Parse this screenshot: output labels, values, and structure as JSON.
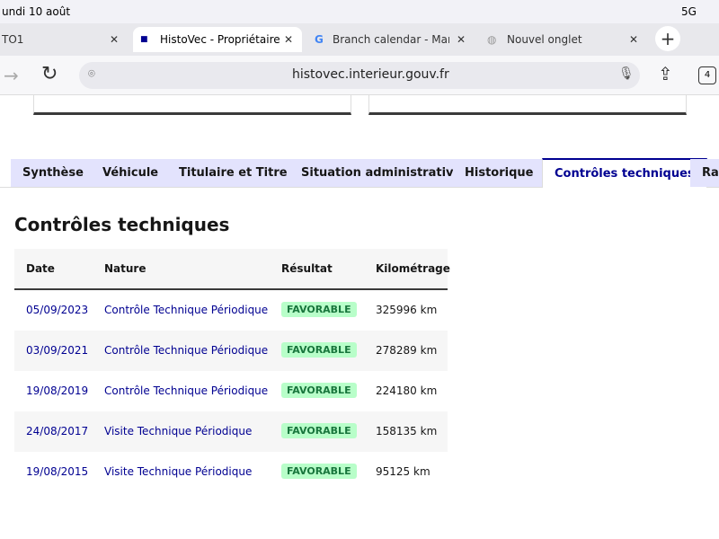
{
  "status_bar": {
    "date": "undi 10 août",
    "network": "5G"
  },
  "browser": {
    "tabs": [
      "TO1",
      "HistoVec - Propriétaire",
      "Branch calendar - Marse",
      "Nouvel onglet"
    ],
    "url": "histovec.interieur.gouv.fr",
    "tab_count": "4"
  },
  "page": {
    "tabs": [
      "Synthèse",
      "Véhicule",
      "Titulaire et Titre",
      "Situation administrative",
      "Historique",
      "Contrôles techniques",
      "Rap"
    ],
    "heading": "Contrôles techniques",
    "table": {
      "header": [
        "Date",
        "Nature",
        "Résultat",
        "Kilométrage"
      ],
      "rows": [
        [
          "05/09/2023",
          "Contrôle Technique Périodique",
          "FAVORABLE",
          "325996 km"
        ],
        [
          "03/09/2021",
          "Contrôle Technique Périodique",
          "FAVORABLE",
          "278289 km"
        ],
        [
          "19/08/2019",
          "Contrôle Technique Périodique",
          "FAVORABLE",
          "224180 km"
        ],
        [
          "24/08/2017",
          "Visite Technique Périodique",
          "FAVORABLE",
          "158135 km"
        ],
        [
          "19/08/2015",
          "Visite Technique Périodique",
          "FAVORABLE",
          "95125 km"
        ]
      ]
    }
  }
}
